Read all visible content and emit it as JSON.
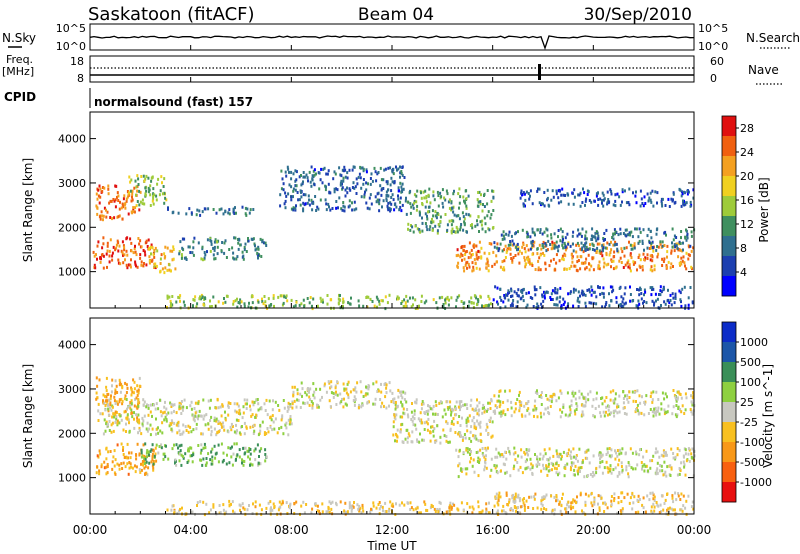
{
  "header": {
    "station": "Saskatoon (fitACF)",
    "beam": "Beam 04",
    "date": "30/Sep/2010"
  },
  "status_panel": {
    "left_nsky_label": "N.Sky",
    "nsky_top_tick": "10^5",
    "nsky_bottom_tick": "10^0",
    "right_nsearch_label": "N.Search",
    "nsearch_top_tick": "10^5",
    "nsearch_bottom_tick": "10^0",
    "freq_label_line1": "Freq.",
    "freq_label_line2": "[MHz]",
    "freq_top_tick": "18",
    "freq_bottom_tick": "8",
    "nave_label": "Nave",
    "nave_top_tick": "60",
    "nave_bottom_tick": "0",
    "cpid_label": "CPID",
    "cpid_value": "normalsound (fast) 157"
  },
  "axes": {
    "x_ticks": [
      "00:00",
      "04:00",
      "08:00",
      "12:00",
      "16:00",
      "20:00",
      "00:00"
    ],
    "xlabel": "Time UT",
    "ylabel": "Slant Range [km]",
    "y_ticks": [
      "1000",
      "2000",
      "3000",
      "4000"
    ]
  },
  "chart_data": [
    {
      "type": "heatmap",
      "panel": "power",
      "xlabel": "Time UT",
      "ylabel": "Slant Range [km]",
      "xlim_hours": [
        0,
        24
      ],
      "ylim_km": [
        180,
        4600
      ],
      "colorbar": {
        "label": "Power [dB]",
        "ticks": [
          "4",
          "8",
          "12",
          "16",
          "20",
          "24",
          "28"
        ],
        "range": [
          0,
          30
        ],
        "colors": [
          "#0000ff",
          "#1c3fb0",
          "#2f6f8f",
          "#3f8f5f",
          "#9ecb3a",
          "#f0d020",
          "#f4a020",
          "#f06010",
          "#e01010"
        ]
      },
      "regions": [
        {
          "t": [
            0.2,
            2.0
          ],
          "r": [
            2200,
            3000
          ],
          "v": 24
        },
        {
          "t": [
            0.1,
            2.6
          ],
          "r": [
            1100,
            1800
          ],
          "v": 25
        },
        {
          "t": [
            2.3,
            3.4
          ],
          "r": [
            1000,
            1600
          ],
          "v": 20
        },
        {
          "t": [
            1.5,
            3.0
          ],
          "r": [
            2500,
            3200
          ],
          "v": 14
        },
        {
          "t": [
            3.5,
            7.0
          ],
          "r": [
            1300,
            1800
          ],
          "v": 10
        },
        {
          "t": [
            3.0,
            6.5
          ],
          "r": [
            2300,
            2500
          ],
          "v": 8
        },
        {
          "t": [
            3.0,
            16.0
          ],
          "r": [
            200,
            500
          ],
          "v": 14
        },
        {
          "t": [
            7.5,
            12.5
          ],
          "r": [
            2400,
            3400
          ],
          "v": 7
        },
        {
          "t": [
            12.5,
            16.0
          ],
          "r": [
            1900,
            2900
          ],
          "v": 12
        },
        {
          "t": [
            14.5,
            24.0
          ],
          "r": [
            1050,
            1700
          ],
          "v": 23
        },
        {
          "t": [
            16.0,
            24.0
          ],
          "r": [
            1500,
            2000
          ],
          "v": 9
        },
        {
          "t": [
            17.0,
            24.0
          ],
          "r": [
            2500,
            2900
          ],
          "v": 6
        },
        {
          "t": [
            16.0,
            24.0
          ],
          "r": [
            200,
            700
          ],
          "v": 6
        }
      ]
    },
    {
      "type": "heatmap",
      "panel": "velocity",
      "xlabel": "Time UT",
      "ylabel": "Slant Range [km]",
      "xlim_hours": [
        0,
        24
      ],
      "ylim_km": [
        180,
        4600
      ],
      "colorbar": {
        "label": "Velocity [m s^-1]",
        "ticks": [
          "1000",
          "500",
          "100",
          "25",
          "-25",
          "-100",
          "-500",
          "-1000"
        ],
        "range": [
          -1000,
          1000
        ],
        "colors": [
          "#0c2cc8",
          "#1c56a8",
          "#3a8f58",
          "#8ed040",
          "#c8c8c0",
          "#f8c020",
          "#f89818",
          "#f86010",
          "#e81010"
        ]
      },
      "regions": [
        {
          "t": [
            0.2,
            2.0
          ],
          "r": [
            2300,
            3300
          ],
          "v": -300
        },
        {
          "t": [
            0.2,
            2.6
          ],
          "r": [
            1100,
            1800
          ],
          "v": -350
        },
        {
          "t": [
            2.0,
            7.0
          ],
          "r": [
            1300,
            1800
          ],
          "v": 300
        },
        {
          "t": [
            0.5,
            8.0
          ],
          "r": [
            2000,
            2800
          ],
          "v": 0
        },
        {
          "t": [
            3.0,
            16.0
          ],
          "r": [
            200,
            500
          ],
          "v": -150
        },
        {
          "t": [
            8.0,
            12.5
          ],
          "r": [
            2600,
            3200
          ],
          "v": 0
        },
        {
          "t": [
            12.0,
            16.0
          ],
          "r": [
            1800,
            2800
          ],
          "v": 0
        },
        {
          "t": [
            14.5,
            24.0
          ],
          "r": [
            1050,
            1700
          ],
          "v": 0
        },
        {
          "t": [
            16.0,
            24.0
          ],
          "r": [
            2400,
            3000
          ],
          "v": 0
        },
        {
          "t": [
            16.0,
            24.0
          ],
          "r": [
            200,
            700
          ],
          "v": -200
        }
      ]
    }
  ]
}
